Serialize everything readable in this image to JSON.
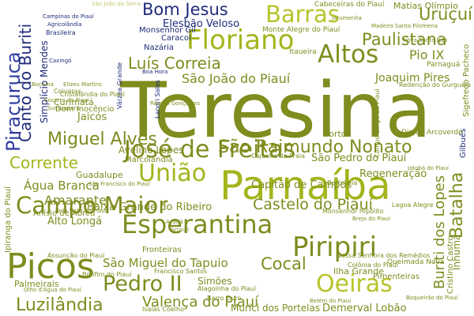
{
  "palette": {
    "olive": "#7f8c1e",
    "lime": "#a3b51c",
    "yellowgreen": "#b7c42a",
    "khaki": "#c4c46a",
    "navy": "#1f2b7a",
    "blue": "#2f3ea0",
    "lightnavy": "#5661a8"
  },
  "words": [
    {
      "text": "Teresina",
      "color": "olive"
    },
    {
      "text": "Parnaíba",
      "color": "lime"
    },
    {
      "text": "Picos",
      "color": "olive"
    },
    {
      "text": "Piripiri",
      "color": "olive"
    },
    {
      "text": "Floriano",
      "color": "lime"
    },
    {
      "text": "Campo Maior",
      "color": "olive"
    },
    {
      "text": "José de Freitas",
      "color": "olive"
    },
    {
      "text": "Esperantina",
      "color": "olive"
    },
    {
      "text": "União",
      "color": "lime"
    },
    {
      "text": "Barras",
      "color": "yellowgreen"
    },
    {
      "text": "Altos",
      "color": "olive"
    },
    {
      "text": "Pedro II",
      "color": "olive"
    },
    {
      "text": "Oeiras",
      "color": "yellowgreen"
    },
    {
      "text": "Luzilândia",
      "color": "olive"
    },
    {
      "text": "São Raimundo Nonato",
      "color": "olive"
    },
    {
      "text": "Miguel Alves",
      "color": "olive"
    },
    {
      "text": "Luís Correia",
      "color": "olive"
    },
    {
      "text": "Corrente",
      "color": "lime"
    },
    {
      "text": "Bom Jesus",
      "color": "navy"
    },
    {
      "text": "Cocal",
      "color": "olive"
    },
    {
      "text": "Castelo do Piauí",
      "color": "olive"
    },
    {
      "text": "Valença do Piauí",
      "color": "olive"
    },
    {
      "text": "Paulistana",
      "color": "olive"
    },
    {
      "text": "Uruçuí",
      "color": "olive"
    },
    {
      "text": "Piracuruca",
      "color": "blue"
    },
    {
      "text": "Canto do Buriti",
      "color": "navy"
    },
    {
      "text": "Batalha",
      "color": "olive"
    },
    {
      "text": "Buriti dos Lopes",
      "color": "olive"
    },
    {
      "text": "Amarante",
      "color": "olive"
    },
    {
      "text": "Água Branca",
      "color": "olive"
    },
    {
      "text": "São João do Piauí",
      "color": "olive"
    },
    {
      "text": "São Miguel do Tapuio",
      "color": "olive"
    },
    {
      "text": "Pio IX",
      "color": "olive"
    },
    {
      "text": "Joaquim Pires",
      "color": "olive"
    },
    {
      "text": "Capitão de Campos",
      "color": "olive"
    },
    {
      "text": "Regeneração",
      "color": "olive"
    },
    {
      "text": "São Pedro do Piauí",
      "color": "olive"
    },
    {
      "text": "Baixa Grande do Ribeiro",
      "color": "olive"
    },
    {
      "text": "Alto Longá",
      "color": "olive"
    },
    {
      "text": "Elesbão Veloso",
      "color": "navy"
    },
    {
      "text": "Jaicós",
      "color": "olive"
    },
    {
      "text": "Gilbués",
      "color": "navy"
    },
    {
      "text": "Simplício Mendes",
      "color": "navy"
    },
    {
      "text": "Monte Alegre do Piauí",
      "color": "olive"
    },
    {
      "text": "Curimatá",
      "color": "olive"
    },
    {
      "text": "Avelino Lopes",
      "color": "olive"
    },
    {
      "text": "Marcolândia",
      "color": "olive"
    },
    {
      "text": "Guadalupe",
      "color": "olive"
    },
    {
      "text": "Benedito Leite",
      "color": "olive"
    },
    {
      "text": "Benedito Leite",
      "color": "olive"
    },
    {
      "text": "Anísio de Abreu",
      "color": "olive"
    },
    {
      "text": "Fronteiras",
      "color": "olive"
    },
    {
      "text": "Simões",
      "color": "olive"
    },
    {
      "text": "Alagoinha do Piauí",
      "color": "olive"
    },
    {
      "text": "Francisco Santos",
      "color": "olive"
    },
    {
      "text": "Palmeirais",
      "color": "olive"
    },
    {
      "text": "Cristino Castro",
      "color": "olive"
    },
    {
      "text": "Inhuma",
      "color": "olive"
    },
    {
      "text": "Pimenteiras",
      "color": "olive"
    },
    {
      "text": "Demerval Lobão",
      "color": "olive"
    },
    {
      "text": "Murici dos Portelas",
      "color": "olive"
    },
    {
      "text": "Ilha Grande",
      "color": "olive"
    },
    {
      "text": "Elizeu Martins",
      "color": "olive"
    },
    {
      "text": "Queimada Nova",
      "color": "olive"
    },
    {
      "text": "Isaías Coelho",
      "color": "olive"
    },
    {
      "text": "Dom Inocêncio",
      "color": "olive"
    },
    {
      "text": "Porto",
      "color": "olive"
    },
    {
      "text": "Caracol",
      "color": "navy"
    },
    {
      "text": "Nazária",
      "color": "navy"
    },
    {
      "text": "Monsenhor Gil",
      "color": "navy"
    },
    {
      "text": "Brasileira",
      "color": "navy"
    },
    {
      "text": "Matias Olímpio",
      "color": "olive"
    },
    {
      "text": "Cabeceiras do Piauí",
      "color": "olive"
    },
    {
      "text": "Itaueira",
      "color": "olive"
    },
    {
      "text": "Sigefredo Pacheco",
      "color": "olive"
    },
    {
      "text": "Monsenhor Hipólito",
      "color": "olive"
    },
    {
      "text": "Nossa Senhora dos Remédios",
      "color": "olive"
    },
    {
      "text": "Lagoa Alegre",
      "color": "olive"
    },
    {
      "text": "Colônia do Piauí",
      "color": "olive"
    },
    {
      "text": "Boqueirão do Piauí",
      "color": "olive"
    },
    {
      "text": "Dirceu Arcoverde",
      "color": "olive"
    },
    {
      "text": "Cajueiro da Praia",
      "color": "olive"
    },
    {
      "text": "Assunção do Piauí",
      "color": "olive"
    },
    {
      "text": "Ipiranga do Piauí",
      "color": "olive"
    },
    {
      "text": "Campo Largo do Piauí",
      "color": "olive"
    },
    {
      "text": "Várzea Grande",
      "color": "navy"
    },
    {
      "text": "São João da Serra",
      "color": "khaki"
    },
    {
      "text": "Campinas do Piauí",
      "color": "navy"
    },
    {
      "text": "Agricolândia",
      "color": "navy"
    },
    {
      "text": "Caxingó",
      "color": "navy"
    },
    {
      "text": "Boa Hora",
      "color": "navy"
    },
    {
      "text": "Parnaguá",
      "color": "olive"
    },
    {
      "text": "Redenção do Gurguéia",
      "color": "olive"
    },
    {
      "text": "Coivaras",
      "color": "olive"
    },
    {
      "text": "Cristalândia do Piauí",
      "color": "olive"
    },
    {
      "text": "Socorro do Piauí",
      "color": "olive"
    },
    {
      "text": "Madeiro",
      "color": "olive"
    },
    {
      "text": "Bocaina",
      "color": "olive"
    },
    {
      "text": "Sussuapara",
      "color": "olive"
    },
    {
      "text": "Bertolínia",
      "color": "olive"
    },
    {
      "text": "Bonfim do Piauí",
      "color": "olive"
    },
    {
      "text": "Barro Duro",
      "color": "olive"
    },
    {
      "text": "Santa Filomena",
      "color": "olive"
    },
    {
      "text": "Jerumenha",
      "color": "olive"
    },
    {
      "text": "Olho d'Água do Piauí",
      "color": "olive"
    },
    {
      "text": "Belém do Piauí",
      "color": "olive"
    },
    {
      "text": "Bela Vista do Piauí",
      "color": "olive"
    },
    {
      "text": "São Francisco do Piauí",
      "color": "olive"
    },
    {
      "text": "Jatobá do Piauí",
      "color": "olive"
    },
    {
      "text": "Acauã",
      "color": "olive"
    },
    {
      "text": "Arraial",
      "color": "olive"
    },
    {
      "text": "Brejo do Piauí",
      "color": "olive"
    },
    {
      "text": "Landri Sales",
      "color": "navy"
    },
    {
      "text": "Ribeiro Gonçalves",
      "color": "olive"
    },
    {
      "text": "Nova Santa Rita",
      "color": "olive"
    }
  ]
}
